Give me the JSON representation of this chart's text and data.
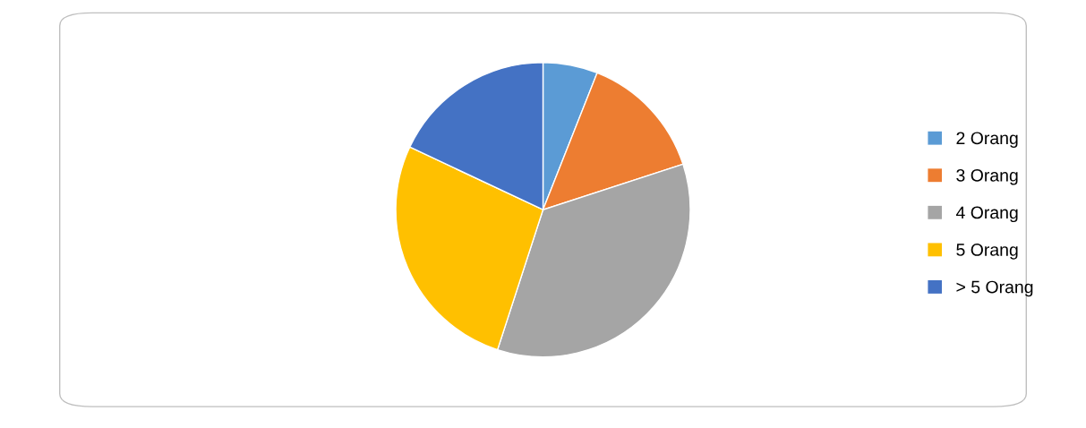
{
  "chart_data": {
    "type": "pie",
    "categories": [
      "2 Orang",
      "3 Orang",
      "4 Orang",
      "5 Orang",
      "> 5 Orang"
    ],
    "values": [
      6,
      14,
      35,
      27,
      18
    ],
    "colors": [
      "#5b9bd5",
      "#ed7d31",
      "#a5a5a5",
      "#ffc000",
      "#4472c4"
    ],
    "legend": "right"
  }
}
